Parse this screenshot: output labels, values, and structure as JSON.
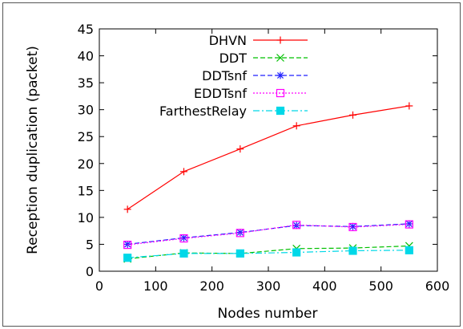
{
  "chart_data": {
    "type": "line",
    "title": "",
    "xlabel": "Nodes number",
    "ylabel": "Reception duplication (packet)",
    "xlim": [
      0,
      600
    ],
    "ylim": [
      0,
      45
    ],
    "xticks": [
      0,
      100,
      200,
      300,
      400,
      500,
      600
    ],
    "yticks": [
      0,
      5,
      10,
      15,
      20,
      25,
      30,
      35,
      40,
      45
    ],
    "grid": false,
    "legend_position": "top-right",
    "x": [
      50,
      150,
      250,
      350,
      450,
      550
    ],
    "series": [
      {
        "name": "DHVN",
        "color": "#ff0000",
        "marker": "plus",
        "dash": "solid",
        "values": [
          11.5,
          18.5,
          22.7,
          27.0,
          29.0,
          30.7
        ]
      },
      {
        "name": "DDT",
        "color": "#00c000",
        "marker": "x",
        "dash": "dashed",
        "values": [
          2.3,
          3.4,
          3.3,
          4.2,
          4.3,
          4.7
        ]
      },
      {
        "name": "DDTsnf",
        "color": "#2020ff",
        "marker": "star",
        "dash": "dashed",
        "values": [
          5.0,
          6.2,
          7.2,
          8.5,
          8.3,
          8.8
        ]
      },
      {
        "name": "EDDTsnf",
        "color": "#ff00ff",
        "marker": "square",
        "dash": "dotted",
        "values": [
          4.9,
          6.1,
          7.1,
          8.6,
          8.2,
          8.7
        ]
      },
      {
        "name": "FarthestRelay",
        "color": "#00d8e8",
        "marker": "filled-square",
        "dash": "dashdot",
        "values": [
          2.5,
          3.3,
          3.3,
          3.5,
          3.8,
          3.9
        ]
      }
    ]
  }
}
